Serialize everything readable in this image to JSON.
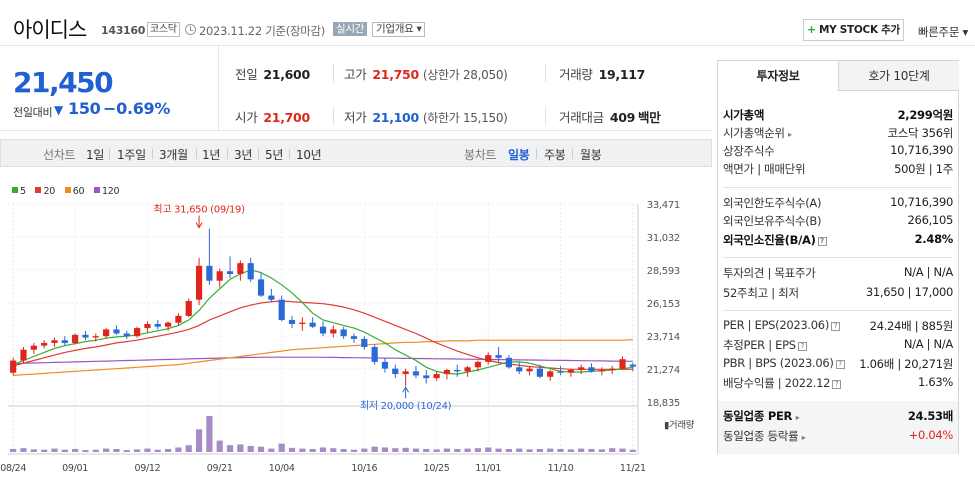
{
  "header": {
    "company_name": "아이디스",
    "code": "143160",
    "market": "코스닥",
    "date": "2023.11.22  기준(장마감)",
    "realtime": "실시간",
    "profile": "기업개요 ▾",
    "mystock": "MY STOCK 추가",
    "mystock_plus": "+",
    "quick_order": "빠른주문 ▾"
  },
  "price": {
    "current": "21,450",
    "change_label": "전일대비",
    "change_arrow": "▼",
    "change": "150",
    "change_pct": "−0.69%"
  },
  "quote": {
    "prev_label": "전일",
    "prev_value": "21,600",
    "high_label": "고가",
    "high_value": "21,750",
    "upper_limit": "(상한가 28,050)",
    "volume_label": "거래량",
    "volume_value": "19,117",
    "open_label": "시가",
    "open_value": "21,700",
    "low_label": "저가",
    "low_value": "21,100",
    "lower_limit": "(하한가 15,150)",
    "amount_label": "거래대금",
    "amount_value": "409",
    "amount_unit": "백만"
  },
  "chart_tabs": {
    "line_label": "선차트",
    "line_items": [
      "1일",
      "1주일",
      "3개월",
      "1년",
      "3년",
      "5년",
      "10년"
    ],
    "candle_label": "봉차트",
    "candle_items": [
      "일봉",
      "주봉",
      "월봉"
    ],
    "candle_active": "일봉"
  },
  "chart_data": {
    "type": "candlestick",
    "legend": [
      {
        "name": "5",
        "color": "#3aaa35"
      },
      {
        "name": "20",
        "color": "#e03c31"
      },
      {
        "name": "60",
        "color": "#f08c1e"
      },
      {
        "name": "120",
        "color": "#9b55c8"
      }
    ],
    "y_ticks": [
      33471,
      31032,
      28593,
      26153,
      23714,
      21274,
      18835
    ],
    "y_tick_labels": [
      "33,471",
      "31,032",
      "28,593",
      "26,153",
      "23,714",
      "21,274",
      "18,835"
    ],
    "ylim": [
      18835,
      33471
    ],
    "x_tick_labels": [
      "08/24",
      "09/01",
      "09/12",
      "09/21",
      "10/04",
      "10/16",
      "10/25",
      "11/01",
      "11/10",
      "11/21"
    ],
    "x_tick_index": [
      0,
      6,
      13,
      20,
      26,
      34,
      41,
      46,
      53,
      60
    ],
    "annotation_high": "최고 31,650 (09/19)",
    "annotation_low": "최저 20,000 (10/24)",
    "annotation_high_value": 31650,
    "annotation_low_value": 20000,
    "annotation_high_index": 18,
    "annotation_low_index": 38,
    "volume_label": "거래량",
    "candles": [
      [
        21000,
        22100,
        20800,
        21900
      ],
      [
        21900,
        22900,
        21700,
        22700
      ],
      [
        22700,
        23200,
        22400,
        23000
      ],
      [
        23000,
        23400,
        22800,
        23200
      ],
      [
        23200,
        23600,
        22900,
        23400
      ],
      [
        23400,
        23700,
        23000,
        23200
      ],
      [
        23200,
        23900,
        23100,
        23800
      ],
      [
        23800,
        24100,
        23400,
        23600
      ],
      [
        23600,
        23900,
        23300,
        23700
      ],
      [
        23700,
        24300,
        23500,
        24200
      ],
      [
        24200,
        24500,
        23800,
        23900
      ],
      [
        23900,
        24100,
        23500,
        23700
      ],
      [
        23700,
        24400,
        23600,
        24300
      ],
      [
        24300,
        24800,
        24000,
        24600
      ],
      [
        24600,
        24900,
        24200,
        24400
      ],
      [
        24400,
        24800,
        24100,
        24700
      ],
      [
        24700,
        25400,
        24500,
        25200
      ],
      [
        25200,
        26500,
        25100,
        26300
      ],
      [
        26400,
        29500,
        26000,
        28900
      ],
      [
        28900,
        31650,
        27500,
        27800
      ],
      [
        27800,
        28700,
        27300,
        28500
      ],
      [
        28500,
        29600,
        28000,
        28300
      ],
      [
        28300,
        29300,
        27800,
        29100
      ],
      [
        29100,
        29500,
        27700,
        27900
      ],
      [
        27900,
        28400,
        26600,
        26700
      ],
      [
        26700,
        27200,
        26200,
        26400
      ],
      [
        26400,
        26700,
        24800,
        24900
      ],
      [
        24900,
        25200,
        24300,
        24600
      ],
      [
        24600,
        25100,
        24100,
        24700
      ],
      [
        24700,
        25100,
        24300,
        24400
      ],
      [
        24400,
        24800,
        23700,
        23900
      ],
      [
        23900,
        24500,
        23600,
        24200
      ],
      [
        24200,
        24400,
        23500,
        23700
      ],
      [
        23700,
        23900,
        23200,
        23500
      ],
      [
        23500,
        23700,
        22700,
        22900
      ],
      [
        22900,
        23100,
        21600,
        21800
      ],
      [
        21800,
        22100,
        21000,
        21300
      ],
      [
        21300,
        21600,
        20600,
        20900
      ],
      [
        20900,
        21300,
        20000,
        21100
      ],
      [
        21100,
        21500,
        20600,
        20800
      ],
      [
        20800,
        21200,
        20200,
        20600
      ],
      [
        20600,
        21100,
        20400,
        20900
      ],
      [
        20900,
        21300,
        20500,
        21200
      ],
      [
        21200,
        21600,
        20700,
        21100
      ],
      [
        21100,
        21500,
        20700,
        21400
      ],
      [
        21400,
        21900,
        21100,
        21800
      ],
      [
        21800,
        22500,
        21600,
        22300
      ],
      [
        22300,
        22900,
        21800,
        22100
      ],
      [
        22100,
        22300,
        21300,
        21400
      ],
      [
        21400,
        21800,
        20900,
        21100
      ],
      [
        21100,
        21500,
        20800,
        21300
      ],
      [
        21300,
        21600,
        20600,
        20700
      ],
      [
        20700,
        21200,
        20400,
        21100
      ],
      [
        21100,
        21500,
        20800,
        21000
      ],
      [
        21000,
        21300,
        20700,
        21200
      ],
      [
        21200,
        21600,
        20900,
        21400
      ],
      [
        21400,
        21700,
        21000,
        21100
      ],
      [
        21100,
        21400,
        20800,
        21200
      ],
      [
        21200,
        21500,
        20900,
        21300
      ],
      [
        21300,
        22200,
        21200,
        22000
      ],
      [
        21600,
        21750,
        21100,
        21450
      ]
    ],
    "volumes": [
      8,
      10,
      7,
      6,
      9,
      6,
      8,
      5,
      6,
      9,
      8,
      5,
      7,
      9,
      6,
      8,
      12,
      18,
      60,
      95,
      30,
      18,
      20,
      16,
      14,
      9,
      22,
      11,
      9,
      8,
      12,
      10,
      8,
      6,
      9,
      14,
      12,
      10,
      11,
      9,
      8,
      7,
      9,
      8,
      9,
      10,
      12,
      9,
      8,
      9,
      7,
      8,
      9,
      8,
      7,
      9,
      8,
      7,
      10,
      9,
      6
    ],
    "ma5": [
      21600,
      21900,
      22200,
      22500,
      22800,
      23000,
      23150,
      23300,
      23400,
      23550,
      23650,
      23700,
      23800,
      23950,
      24100,
      24250,
      24500,
      24900,
      25600,
      26500,
      27200,
      27900,
      28300,
      28600,
      28400,
      28000,
      27500,
      26900,
      26200,
      25400,
      24900,
      24700,
      24500,
      24300,
      24000,
      23600,
      23200,
      22700,
      22300,
      21900,
      21400,
      21100,
      20950,
      20900,
      21050,
      21200,
      21400,
      21600,
      21800,
      21800,
      21700,
      21500,
      21300,
      21100,
      21050,
      21050,
      21100,
      21150,
      21200,
      21300,
      21400
    ],
    "ma20": [
      21500,
      21700,
      21900,
      22100,
      22300,
      22500,
      22650,
      22800,
      22900,
      23050,
      23200,
      23300,
      23400,
      23550,
      23700,
      23850,
      24000,
      24200,
      24500,
      24900,
      25200,
      25500,
      25800,
      26000,
      26150,
      26250,
      26300,
      26250,
      26200,
      26150,
      26100,
      26000,
      25850,
      25650,
      25400,
      25100,
      24800,
      24500,
      24200,
      23900,
      23550,
      23200,
      22900,
      22600,
      22350,
      22100,
      21900,
      21750,
      21650,
      21550,
      21450,
      21400,
      21350,
      21300,
      21250,
      21250,
      21250,
      21250,
      21250,
      21250,
      21250
    ],
    "ma60": [
      20800,
      20850,
      20900,
      20950,
      21000,
      21050,
      21100,
      21150,
      21200,
      21250,
      21300,
      21350,
      21400,
      21450,
      21500,
      21550,
      21600,
      21700,
      21800,
      21900,
      22000,
      22100,
      22200,
      22300,
      22400,
      22500,
      22600,
      22700,
      22750,
      22800,
      22850,
      22900,
      22950,
      23000,
      23050,
      23100,
      23150,
      23200,
      23250,
      23250,
      23300,
      23300,
      23350,
      23350,
      23350,
      23400,
      23400,
      23400,
      23400,
      23400,
      23400,
      23400,
      23400,
      23400,
      23400,
      23400,
      23400,
      23400,
      23400,
      23400,
      23450
    ],
    "ma120": [
      21650,
      21700,
      21720,
      21740,
      21760,
      21780,
      21800,
      21820,
      21840,
      21860,
      21880,
      21900,
      21920,
      21940,
      21960,
      21980,
      22000,
      22020,
      22040,
      22060,
      22080,
      22100,
      22120,
      22130,
      22140,
      22150,
      22150,
      22150,
      22150,
      22150,
      22140,
      22130,
      22120,
      22110,
      22100,
      22090,
      22080,
      22070,
      22060,
      22050,
      22040,
      22030,
      22020,
      22010,
      22000,
      21990,
      21980,
      21970,
      21960,
      21950,
      21940,
      21930,
      21920,
      21910,
      21900,
      21890,
      21880,
      21870,
      21860,
      21850,
      21840
    ]
  },
  "invest": {
    "tab_active": "투자정보",
    "tab_other": "호가 10단계",
    "market_cap_label": "시가총액",
    "market_cap_value": "2,299억원",
    "cap_rank_label": "시가총액순위",
    "cap_rank_value": "코스닥 356위",
    "shares_label": "상장주식수",
    "shares_value": "10,716,390",
    "par_label": "액면가 | 매매단위",
    "par_value": "500원 | 1주",
    "foreign_limit_label": "외국인한도주식수(A)",
    "foreign_limit_value": "10,716,390",
    "foreign_hold_label": "외국인보유주식수(B)",
    "foreign_hold_value": "266,105",
    "foreign_ratio_label": "외국인소진율(B/A)",
    "foreign_ratio_value": "2.48%",
    "opinion_label": "투자의견 | 목표주가",
    "opinion_value": "N/A | N/A",
    "week52_label": "52주최고 | 최저",
    "week52_value": "31,650 | 17,000",
    "per_label": "PER | EPS(2023.06)",
    "per_value": "24.24배 | 885원",
    "est_per_label": "추정PER | EPS",
    "est_per_value": "N/A | N/A",
    "pbr_label": "PBR | BPS (2023.06)",
    "pbr_value": "1.06배 | 20,271원",
    "dividend_label": "배당수익률 | 2022.12",
    "dividend_value": "1.63%",
    "sector_per_label": "동일업종 PER",
    "sector_per_value": "24.53배",
    "sector_rate_label": "동일업종 등락률",
    "sector_rate_value": "+0.04%",
    "help_glyph": "?"
  }
}
